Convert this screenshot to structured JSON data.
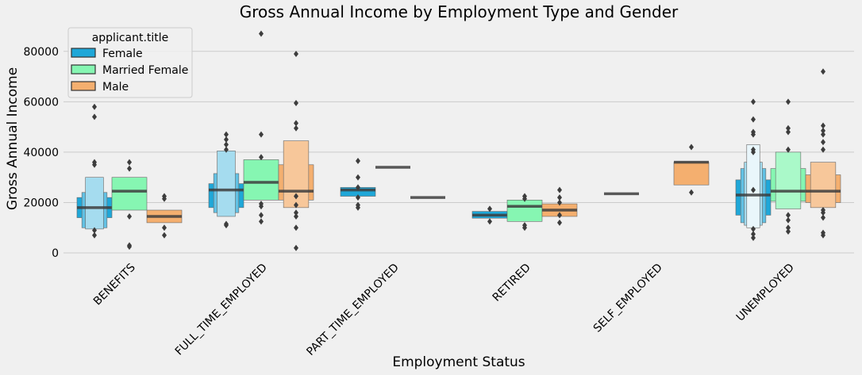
{
  "chart_data": {
    "type": "boxen",
    "title": "Gross Annual Income by Employment Type and Gender",
    "xlabel": "Employment Status",
    "ylabel": "Gross Annual Income",
    "ylim": [
      -2500,
      90000
    ],
    "yticks": [
      0,
      20000,
      40000,
      60000,
      80000
    ],
    "grid": true,
    "legend": {
      "title": "applicant.title",
      "placement": "top-left"
    },
    "categories": [
      "BENEFITS",
      "FULL_TIME_EMPLOYED",
      "PART_TIME_EMPLOYED",
      "RETIRED",
      "SELF_EMPLOYED",
      "UNEMPLOYED"
    ],
    "series": [
      {
        "name": "Female",
        "color": "#1fa7d8",
        "boxes": [
          {
            "median": 18000,
            "levels": [
              [
                14000,
                22000
              ],
              [
                10000,
                24000
              ],
              [
                9500,
                30000
              ]
            ],
            "outliers": [
              7000,
              9000,
              35000,
              36000,
              54000,
              58000
            ]
          },
          {
            "median": 25000,
            "levels": [
              [
                18000,
                27500
              ],
              [
                16000,
                31500
              ],
              [
                14500,
                40500
              ]
            ],
            "outliers": [
              11000,
              11500,
              41000,
              43000,
              45000,
              47000
            ]
          },
          {
            "median": 25000,
            "levels": [
              [
                22500,
                26000
              ]
            ],
            "outliers": [
              18000,
              19000,
              22000,
              26000,
              30000,
              36500
            ]
          },
          {
            "median": 15000,
            "levels": [
              [
                13800,
                16500
              ]
            ],
            "outliers": [
              12500,
              17500
            ]
          },
          {
            "median": 23500,
            "levels": [
              [
                23500,
                23500
              ]
            ],
            "outliers": []
          },
          {
            "median": 23000,
            "levels": [
              [
                15000,
                29000
              ],
              [
                12000,
                33500
              ],
              [
                11000,
                36000
              ],
              [
                10000,
                43000
              ]
            ],
            "outliers": [
              6000,
              7500,
              9500,
              25000,
              40000,
              41000,
              47000,
              48000,
              53000,
              60000
            ]
          }
        ]
      },
      {
        "name": "Married Female",
        "color": "#86f6b2",
        "boxes": [
          {
            "median": 24500,
            "levels": [
              [
                17000,
                30000
              ]
            ],
            "outliers": [
              2500,
              3000,
              14500,
              33500,
              36000
            ]
          },
          {
            "median": 28000,
            "levels": [
              [
                21000,
                37000
              ]
            ],
            "outliers": [
              12500,
              15000,
              18500,
              19500,
              38000,
              47000,
              87000
            ]
          },
          {
            "median": 34000,
            "levels": [
              [
                34000,
                34000
              ]
            ],
            "outliers": []
          },
          {
            "median": 18500,
            "levels": [
              [
                12500,
                21000
              ]
            ],
            "outliers": [
              10000,
              11000,
              21500,
              22500
            ]
          },
          {
            "median": null,
            "levels": [],
            "outliers": []
          },
          {
            "median": 24500,
            "levels": [
              [
                20500,
                33500
              ],
              [
                17500,
                40000
              ]
            ],
            "outliers": [
              8500,
              10000,
              13000,
              15000,
              41000,
              48000,
              49500,
              60000
            ]
          }
        ]
      },
      {
        "name": "Male",
        "color": "#f4af6f",
        "boxes": [
          {
            "median": 14500,
            "levels": [
              [
                12000,
                17000
              ]
            ],
            "outliers": [
              7000,
              10000,
              21500,
              22500
            ]
          },
          {
            "median": 24500,
            "levels": [
              [
                21000,
                35000
              ],
              [
                18000,
                44500
              ]
            ],
            "outliers": [
              2000,
              10000,
              14500,
              16000,
              19000,
              22500,
              49500,
              51500,
              59500,
              79000
            ]
          },
          {
            "median": 22000,
            "levels": [
              [
                22000,
                22000
              ]
            ],
            "outliers": []
          },
          {
            "median": 17000,
            "levels": [
              [
                14500,
                19500
              ]
            ],
            "outliers": [
              12000,
              15000,
              20000,
              22000,
              25000
            ]
          },
          {
            "median": 36000,
            "levels": [
              [
                27000,
                36000
              ]
            ],
            "outliers": [
              24000,
              42000
            ]
          },
          {
            "median": 24500,
            "levels": [
              [
                20000,
                31000
              ],
              [
                18000,
                36000
              ]
            ],
            "outliers": [
              7000,
              8000,
              14000,
              16000,
              17000,
              41000,
              44000,
              47000,
              48500,
              50500,
              72000
            ]
          }
        ]
      }
    ]
  }
}
